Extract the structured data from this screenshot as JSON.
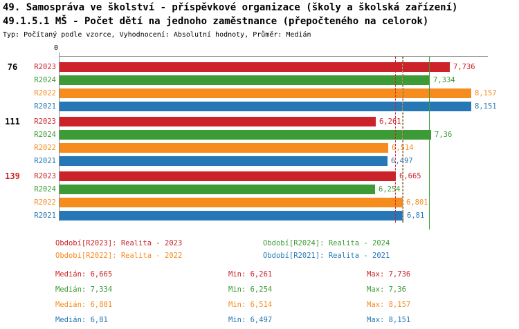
{
  "page": {
    "title_line1": "49. Samospráva ve školství - příspěvkové organizace (školy a školská zařízení)",
    "title_line2": "49.1.5.1 MŠ - Počet dětí na jednoho zaměstnance (přepočteného na celorok)",
    "subtitle": "Typ: Počítaný podle vzorce, Vyhodnocení: Absolutní hodnoty, Průměr: Medián"
  },
  "chart_data": {
    "type": "bar",
    "orientation": "horizontal",
    "x_axis": {
      "origin_label": "0",
      "min": 0,
      "max": 8.5,
      "grid": false
    },
    "series": [
      {
        "key": "R2023",
        "row_label": "R2023",
        "color": "#cc2229",
        "legend_label": "Období[R2023]: Realita - 2023",
        "median": 6.665,
        "median_text": "Medián: 6,665",
        "min_text": "Min: 6,261",
        "max_text": "Max: 7,736"
      },
      {
        "key": "R2024",
        "row_label": "R2024",
        "color": "#3c9b35",
        "legend_label": "Období[R2024]: Realita - 2024",
        "median": 7.334,
        "median_text": "Medián: 7,334",
        "min_text": "Min: 6,254",
        "max_text": "Max: 7,36"
      },
      {
        "key": "R2022",
        "row_label": "R2022",
        "color": "#f68b1e",
        "legend_label": "Období[R2022]: Realita - 2022",
        "median": 6.801,
        "median_text": "Medián: 6,801",
        "min_text": "Min: 6,514",
        "max_text": "Max: 8,157"
      },
      {
        "key": "R2021",
        "row_label": "R2021",
        "color": "#2677b5",
        "legend_label": "Období[R2021]: Realita - 2021",
        "median": 6.81,
        "median_text": "Medián: 6,81",
        "min_text": "Min: 6,497",
        "max_text": "Max: 8,151"
      }
    ],
    "groups": [
      {
        "label": "76",
        "label_color": "#000000",
        "bars": [
          {
            "series": "R2023",
            "value": 7.736,
            "display": "7,736"
          },
          {
            "series": "R2024",
            "value": 7.334,
            "display": "7,334"
          },
          {
            "series": "R2022",
            "value": 8.157,
            "display": "8,157"
          },
          {
            "series": "R2021",
            "value": 8.151,
            "display": "8,151"
          }
        ]
      },
      {
        "label": "111",
        "label_color": "#000000",
        "bars": [
          {
            "series": "R2023",
            "value": 6.261,
            "display": "6,261"
          },
          {
            "series": "R2024",
            "value": 7.36,
            "display": "7,36"
          },
          {
            "series": "R2022",
            "value": 6.514,
            "display": "6,514"
          },
          {
            "series": "R2021",
            "value": 6.497,
            "display": "6,497"
          }
        ]
      },
      {
        "label": "139",
        "label_color": "#cc2229",
        "bars": [
          {
            "series": "R2023",
            "value": 6.665,
            "display": "6,665"
          },
          {
            "series": "R2024",
            "value": 6.254,
            "display": "6,254"
          },
          {
            "series": "R2022",
            "value": 6.801,
            "display": "6,801"
          },
          {
            "series": "R2021",
            "value": 6.81,
            "display": "6,81"
          }
        ]
      }
    ]
  }
}
